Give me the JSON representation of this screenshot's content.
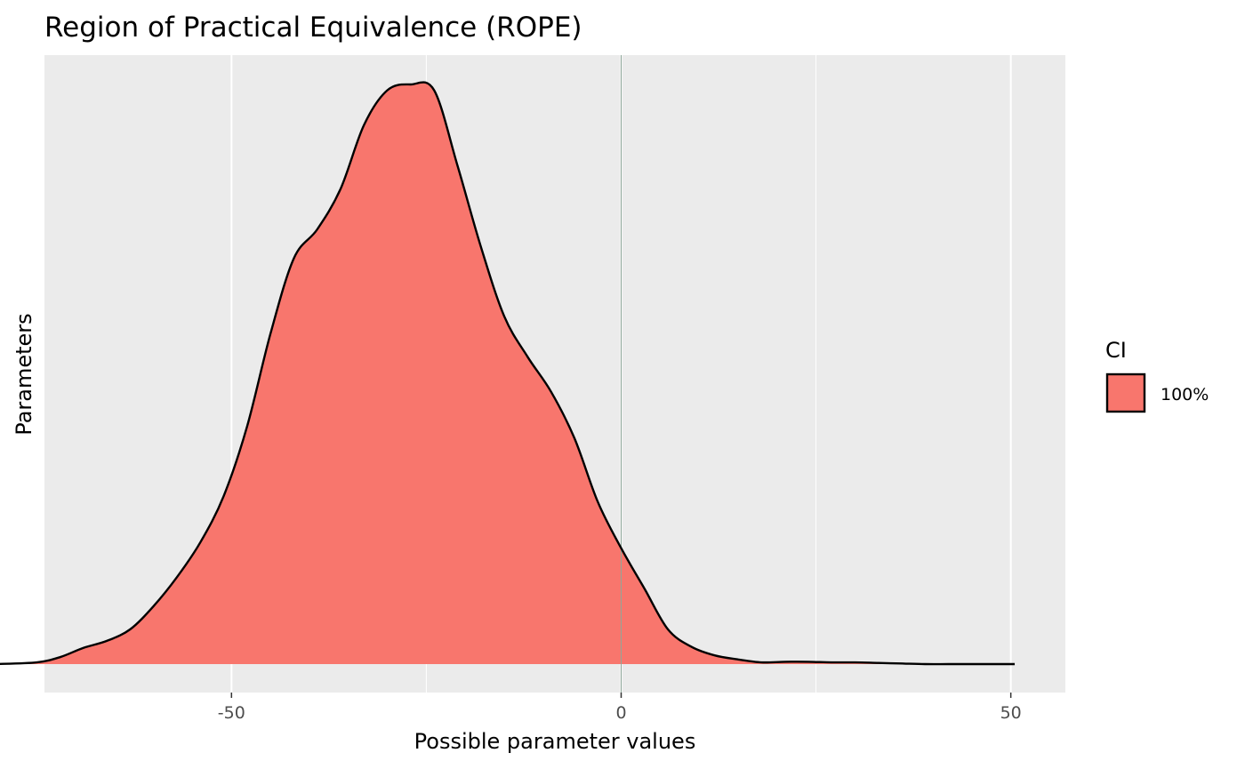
{
  "chart_data": {
    "type": "area",
    "title": "Region of Practical Equivalence (ROPE)",
    "xlabel": "Possible parameter values",
    "ylabel": "Parameters",
    "xlim": [
      -74,
      57
    ],
    "x_ticks": [
      -50,
      0,
      50
    ],
    "x_tick_labels": [
      "-50",
      "0",
      "50"
    ],
    "grid": true,
    "reference_line_x": 0,
    "legend": {
      "title": "CI",
      "placement": "right",
      "entries": [
        {
          "label": "100%",
          "color": "#F8766D"
        }
      ]
    },
    "series": [
      {
        "name": "100%",
        "color": "#F8766D",
        "x": [
          -80.3,
          -75,
          -72,
          -69,
          -66,
          -63,
          -60,
          -57,
          -54,
          -51,
          -48,
          -45,
          -42,
          -39,
          -36,
          -33,
          -30,
          -27,
          -24,
          -21,
          -18,
          -15,
          -12,
          -9,
          -6,
          -3,
          0,
          3,
          6,
          9,
          12,
          15,
          18,
          21,
          24,
          27,
          30,
          33,
          36,
          39,
          42,
          45,
          50.5
        ],
        "y": [
          0.0,
          0.003,
          0.012,
          0.028,
          0.04,
          0.06,
          0.1,
          0.15,
          0.21,
          0.29,
          0.41,
          0.57,
          0.7,
          0.75,
          0.82,
          0.93,
          0.99,
          1.0,
          0.99,
          0.86,
          0.72,
          0.6,
          0.53,
          0.47,
          0.39,
          0.28,
          0.2,
          0.13,
          0.06,
          0.03,
          0.015,
          0.008,
          0.003,
          0.004,
          0.004,
          0.003,
          0.003,
          0.002,
          0.001,
          0.0,
          0.0,
          0.0,
          0.0
        ]
      }
    ]
  }
}
